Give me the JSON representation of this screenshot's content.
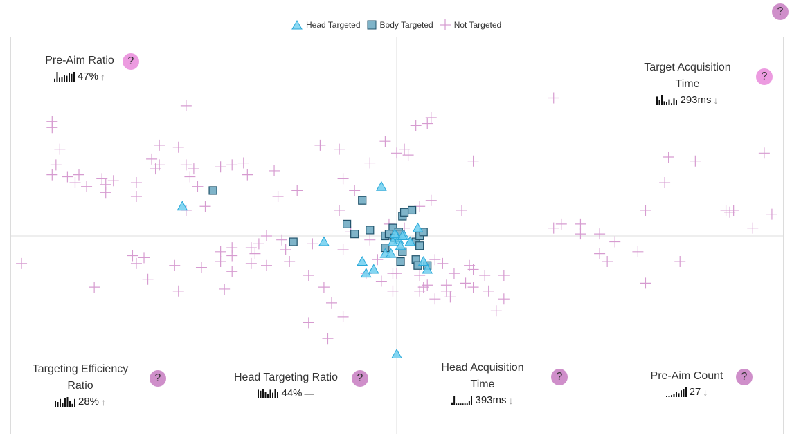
{
  "help_glyph": "?",
  "legend": {
    "head_label": "Head Targeted",
    "body_label": "Body Targeted",
    "none_label": "Not Targeted"
  },
  "metrics": [
    {
      "id": "pre-aim-ratio",
      "title_lines": [
        "Pre-Aim Ratio"
      ],
      "value": "47%",
      "trend": "↑",
      "trend_icon": "arrow-up-icon",
      "spark": [
        3,
        10,
        4,
        5,
        7,
        6,
        9,
        8,
        10
      ]
    },
    {
      "id": "target-acquisition-time",
      "title_lines": [
        "Target Acquisition",
        "Time"
      ],
      "value": "293ms",
      "trend": "↓",
      "trend_icon": "arrow-down-icon",
      "spark": [
        9,
        5,
        10,
        4,
        3,
        6,
        2,
        7,
        5
      ]
    },
    {
      "id": "targeting-efficiency-ratio",
      "title_lines": [
        "Targeting Efficiency",
        "Ratio"
      ],
      "value": "28%",
      "trend": "↑",
      "trend_icon": "arrow-up-icon",
      "spark": [
        6,
        5,
        8,
        4,
        9,
        10,
        6,
        3,
        8
      ]
    },
    {
      "id": "head-targeting-ratio",
      "title_lines": [
        "Head Targeting Ratio"
      ],
      "value": "44%",
      "trend": "—",
      "trend_icon": "dash-icon",
      "spark": [
        9,
        8,
        10,
        7,
        5,
        9,
        6,
        10,
        7
      ]
    },
    {
      "id": "head-acquisition-time",
      "title_lines": [
        "Head Acquisition",
        "Time"
      ],
      "value": "393ms",
      "trend": "↓",
      "trend_icon": "arrow-down-icon",
      "spark": [
        3,
        10,
        2,
        2,
        2,
        2,
        2,
        2,
        5,
        10
      ]
    },
    {
      "id": "pre-aim-count",
      "title_lines": [
        "Pre-Aim Count"
      ],
      "value": "27",
      "trend": "↓",
      "trend_icon": "arrow-down-icon",
      "spark": [
        1,
        1,
        2,
        3,
        5,
        4,
        7,
        8,
        10
      ]
    }
  ],
  "chart_data": {
    "type": "scatter",
    "title": "",
    "xlabel": "",
    "ylabel": "",
    "xlim": [
      -1,
      1
    ],
    "ylim": [
      -1,
      1
    ],
    "grid": "center crosshair",
    "legend": "top-center",
    "colors": {
      "head": "#6fcff0",
      "head_stroke": "#2aa8d8",
      "body": "#7fb4c9",
      "body_stroke": "#21536b",
      "none": "#d69bd0"
    },
    "series": [
      {
        "name": "Head Targeted",
        "marker": "triangle",
        "points": [
          [
            -0.56,
            0.15
          ],
          [
            -0.04,
            0.25
          ],
          [
            -0.19,
            -0.03
          ],
          [
            -0.09,
            -0.13
          ],
          [
            -0.06,
            -0.17
          ],
          [
            -0.08,
            -0.19
          ],
          [
            -0.03,
            -0.09
          ],
          [
            -0.015,
            -0.09
          ],
          [
            0.0,
            0.0
          ],
          [
            0.005,
            -0.02
          ],
          [
            0.01,
            -0.05
          ],
          [
            0.02,
            0.0
          ],
          [
            0.035,
            -0.03
          ],
          [
            0.055,
            0.04
          ],
          [
            0.035,
            -0.03
          ],
          [
            0.07,
            -0.13
          ],
          [
            0.08,
            -0.17
          ],
          [
            0.0,
            -0.6
          ],
          [
            -0.01,
            -0.03
          ],
          [
            0.015,
            0.0
          ],
          [
            -0.005,
            0.01
          ]
        ]
      },
      {
        "name": "Body Targeted",
        "marker": "square",
        "points": [
          [
            -0.48,
            0.23
          ],
          [
            -0.09,
            0.18
          ],
          [
            -0.13,
            0.06
          ],
          [
            -0.07,
            0.03
          ],
          [
            -0.11,
            0.01
          ],
          [
            -0.27,
            -0.03
          ],
          [
            -0.03,
            0.0
          ],
          [
            -0.01,
            0.04
          ],
          [
            -0.03,
            -0.06
          ],
          [
            0.005,
            0.02
          ],
          [
            0.015,
            0.1
          ],
          [
            0.02,
            0.12
          ],
          [
            0.04,
            0.13
          ],
          [
            0.05,
            -0.03
          ],
          [
            0.06,
            0.0
          ],
          [
            0.07,
            0.02
          ],
          [
            0.06,
            -0.05
          ],
          [
            0.015,
            -0.08
          ],
          [
            0.01,
            -0.13
          ],
          [
            0.05,
            -0.12
          ],
          [
            0.055,
            -0.15
          ],
          [
            0.08,
            -0.15
          ],
          [
            -0.02,
            0.01
          ],
          [
            0.0,
            0.0
          ],
          [
            -0.005,
            -0.01
          ],
          [
            0.01,
            0.01
          ]
        ]
      },
      {
        "name": "Not Targeted",
        "marker": "cross",
        "points": [
          [
            -0.9,
            0.58
          ],
          [
            -0.9,
            0.55
          ],
          [
            -0.88,
            0.44
          ],
          [
            -0.89,
            0.36
          ],
          [
            -0.9,
            0.31
          ],
          [
            -0.86,
            0.3
          ],
          [
            -0.84,
            0.27
          ],
          [
            -0.83,
            0.31
          ],
          [
            -0.81,
            0.25
          ],
          [
            -0.77,
            0.29
          ],
          [
            -0.76,
            0.26
          ],
          [
            -0.74,
            0.28
          ],
          [
            -0.76,
            0.22
          ],
          [
            -0.68,
            0.27
          ],
          [
            -0.68,
            0.2
          ],
          [
            -0.64,
            0.39
          ],
          [
            -0.62,
            0.36
          ],
          [
            -0.63,
            0.34
          ],
          [
            -0.62,
            0.46
          ],
          [
            -0.55,
            0.66
          ],
          [
            -0.55,
            0.36
          ],
          [
            -0.57,
            0.45
          ],
          [
            -0.53,
            0.34
          ],
          [
            -0.54,
            0.3
          ],
          [
            -0.52,
            0.25
          ],
          [
            -0.55,
            0.13
          ],
          [
            -0.5,
            0.15
          ],
          [
            -0.46,
            0.35
          ],
          [
            -0.43,
            0.36
          ],
          [
            -0.4,
            0.37
          ],
          [
            -0.39,
            0.31
          ],
          [
            -0.31,
            0.2
          ],
          [
            -0.32,
            0.33
          ],
          [
            -0.26,
            0.23
          ],
          [
            -0.2,
            0.46
          ],
          [
            -0.15,
            0.44
          ],
          [
            -0.15,
            0.13
          ],
          [
            -0.12,
            0.02
          ],
          [
            -0.07,
            0.37
          ],
          [
            -0.03,
            0.48
          ],
          [
            0.0,
            0.42
          ],
          [
            0.02,
            0.44
          ],
          [
            0.05,
            0.56
          ],
          [
            0.03,
            0.41
          ],
          [
            0.08,
            0.57
          ],
          [
            0.09,
            0.6
          ],
          [
            0.2,
            0.38
          ],
          [
            0.06,
            0.15
          ],
          [
            0.09,
            0.18
          ],
          [
            0.17,
            0.13
          ],
          [
            0.02,
            0.04
          ],
          [
            -0.02,
            0.06
          ],
          [
            -0.07,
            -0.02
          ],
          [
            -0.11,
            0.23
          ],
          [
            -0.14,
            0.29
          ],
          [
            -0.22,
            -0.04
          ],
          [
            -0.3,
            -0.02
          ],
          [
            -0.34,
            0.0
          ],
          [
            -0.36,
            -0.04
          ],
          [
            -0.38,
            -0.06
          ],
          [
            -0.43,
            -0.06
          ],
          [
            -0.46,
            -0.08
          ],
          [
            -0.51,
            -0.16
          ],
          [
            -0.58,
            -0.15
          ],
          [
            -0.66,
            -0.11
          ],
          [
            -0.69,
            -0.1
          ],
          [
            -0.68,
            -0.14
          ],
          [
            -0.65,
            -0.22
          ],
          [
            -0.57,
            -0.28
          ],
          [
            -0.79,
            -0.26
          ],
          [
            -0.98,
            -0.14
          ],
          [
            -0.43,
            -0.1
          ],
          [
            -0.46,
            -0.13
          ],
          [
            -0.43,
            -0.18
          ],
          [
            -0.37,
            -0.09
          ],
          [
            -0.45,
            -0.27
          ],
          [
            -0.38,
            -0.14
          ],
          [
            -0.34,
            -0.15
          ],
          [
            -0.29,
            -0.07
          ],
          [
            -0.28,
            -0.13
          ],
          [
            -0.23,
            -0.2
          ],
          [
            -0.19,
            -0.26
          ],
          [
            -0.14,
            -0.07
          ],
          [
            -0.08,
            -0.19
          ],
          [
            -0.05,
            -0.12
          ],
          [
            -0.01,
            -0.19
          ],
          [
            0.0,
            -0.19
          ],
          [
            0.06,
            -0.2
          ],
          [
            0.06,
            -0.28
          ],
          [
            0.07,
            -0.26
          ],
          [
            0.1,
            -0.32
          ],
          [
            0.13,
            -0.28
          ],
          [
            0.13,
            -0.25
          ],
          [
            0.12,
            -0.14
          ],
          [
            0.15,
            -0.19
          ],
          [
            0.18,
            -0.24
          ],
          [
            0.2,
            -0.26
          ],
          [
            0.2,
            -0.17
          ],
          [
            0.19,
            -0.15
          ],
          [
            0.23,
            -0.2
          ],
          [
            0.24,
            -0.28
          ],
          [
            0.28,
            -0.2
          ],
          [
            0.26,
            -0.38
          ],
          [
            0.28,
            -0.32
          ],
          [
            0.14,
            -0.31
          ],
          [
            0.08,
            -0.25
          ],
          [
            0.1,
            -0.12
          ],
          [
            -0.04,
            -0.23
          ],
          [
            -0.01,
            -0.28
          ],
          [
            -0.17,
            -0.34
          ],
          [
            -0.14,
            -0.41
          ],
          [
            -0.23,
            -0.44
          ],
          [
            -0.18,
            -0.52
          ],
          [
            0.41,
            0.7
          ],
          [
            0.43,
            0.06
          ],
          [
            0.41,
            0.04
          ],
          [
            0.48,
            0.06
          ],
          [
            0.48,
            0.01
          ],
          [
            0.53,
            0.01
          ],
          [
            0.57,
            -0.03
          ],
          [
            0.53,
            -0.09
          ],
          [
            0.55,
            -0.13
          ],
          [
            0.63,
            -0.08
          ],
          [
            0.65,
            0.13
          ],
          [
            0.7,
            0.27
          ],
          [
            0.71,
            0.4
          ],
          [
            0.74,
            -0.13
          ],
          [
            0.65,
            -0.24
          ],
          [
            0.78,
            0.38
          ],
          [
            0.87,
            0.12
          ],
          [
            0.86,
            0.13
          ],
          [
            0.88,
            0.13
          ],
          [
            0.93,
            0.04
          ],
          [
            0.96,
            0.42
          ],
          [
            0.98,
            0.11
          ]
        ]
      }
    ]
  }
}
